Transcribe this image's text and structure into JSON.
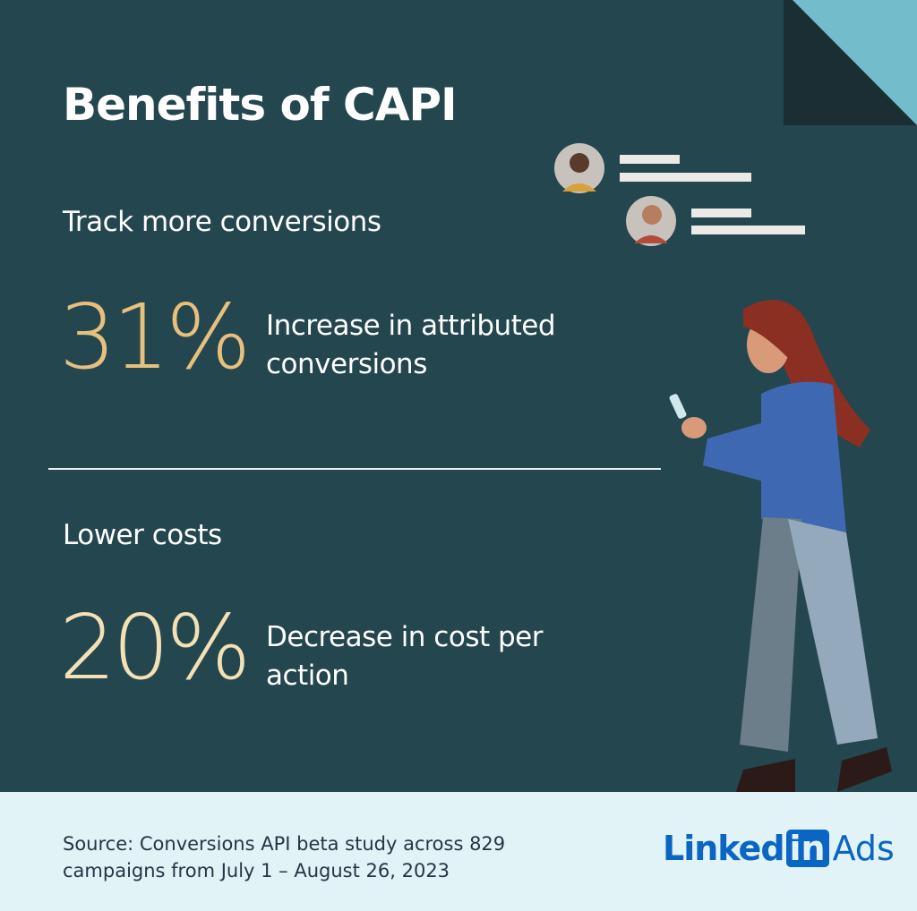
{
  "header": {
    "title": "Benefits of CAPI"
  },
  "sections": [
    {
      "heading": "Track more conversions",
      "stat": "31%",
      "description": "Increase in attributed conversions"
    },
    {
      "heading": "Lower costs",
      "stat": "20%",
      "description": "Decrease in cost per action"
    }
  ],
  "footer": {
    "source": "Source: Conversions API beta study across 829 campaigns from July 1 – August 26, 2023",
    "logo": {
      "linked": "Linked",
      "in": "in",
      "product": "Ads"
    }
  }
}
